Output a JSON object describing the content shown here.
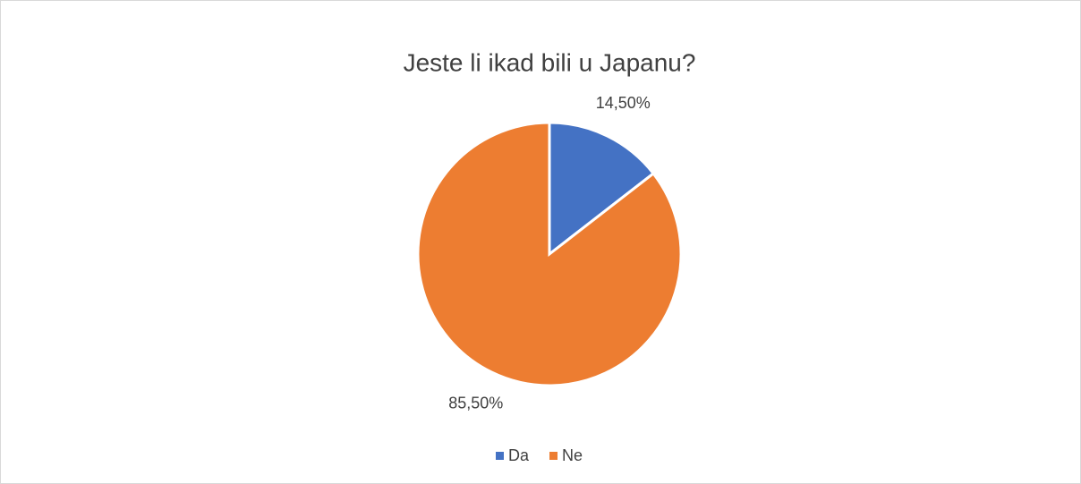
{
  "chart_data": {
    "type": "pie",
    "title": "Jeste li ikad bili u Japanu?",
    "categories": [
      "Da",
      "Ne"
    ],
    "values": [
      14.5,
      85.5
    ],
    "value_labels": [
      "14,50%",
      "85,50%"
    ],
    "colors": [
      "#4472c4",
      "#ed7d31"
    ],
    "legend": "bottom"
  }
}
